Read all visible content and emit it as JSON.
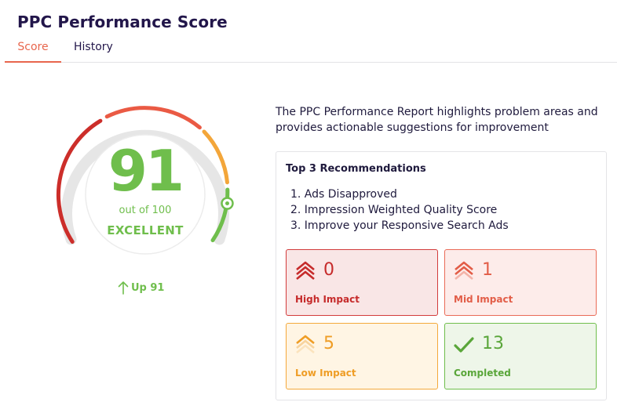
{
  "header": {
    "title": "PPC Performance Score"
  },
  "tabs": [
    {
      "label": "Score",
      "active": true
    },
    {
      "label": "History",
      "active": false
    }
  ],
  "score": {
    "value": "91",
    "max_text": "out of 100",
    "grade": "EXCELLENT",
    "trend": "Up 91",
    "fraction": 0.91
  },
  "description": "The PPC Performance Report highlights problem areas and provides actionable suggestions for improvement",
  "recommendations": {
    "title": "Top 3 Recommendations",
    "items": [
      "1. Ads Disapproved",
      "2. Impression Weighted Quality Score",
      "3. Improve your Responsive Search Ads"
    ]
  },
  "impacts": {
    "high": {
      "count": "0",
      "label": "High Impact",
      "color": "#c62b2b"
    },
    "mid": {
      "count": "1",
      "label": "Mid Impact",
      "color": "#e25d47"
    },
    "low": {
      "count": "5",
      "label": "Low Impact",
      "color": "#ef9d25"
    },
    "completed": {
      "count": "13",
      "label": "Completed",
      "color": "#5aa63a"
    }
  },
  "colors": {
    "accent": "#e8664d",
    "score_green": "#6fbe4c",
    "title_navy": "#22164a"
  }
}
